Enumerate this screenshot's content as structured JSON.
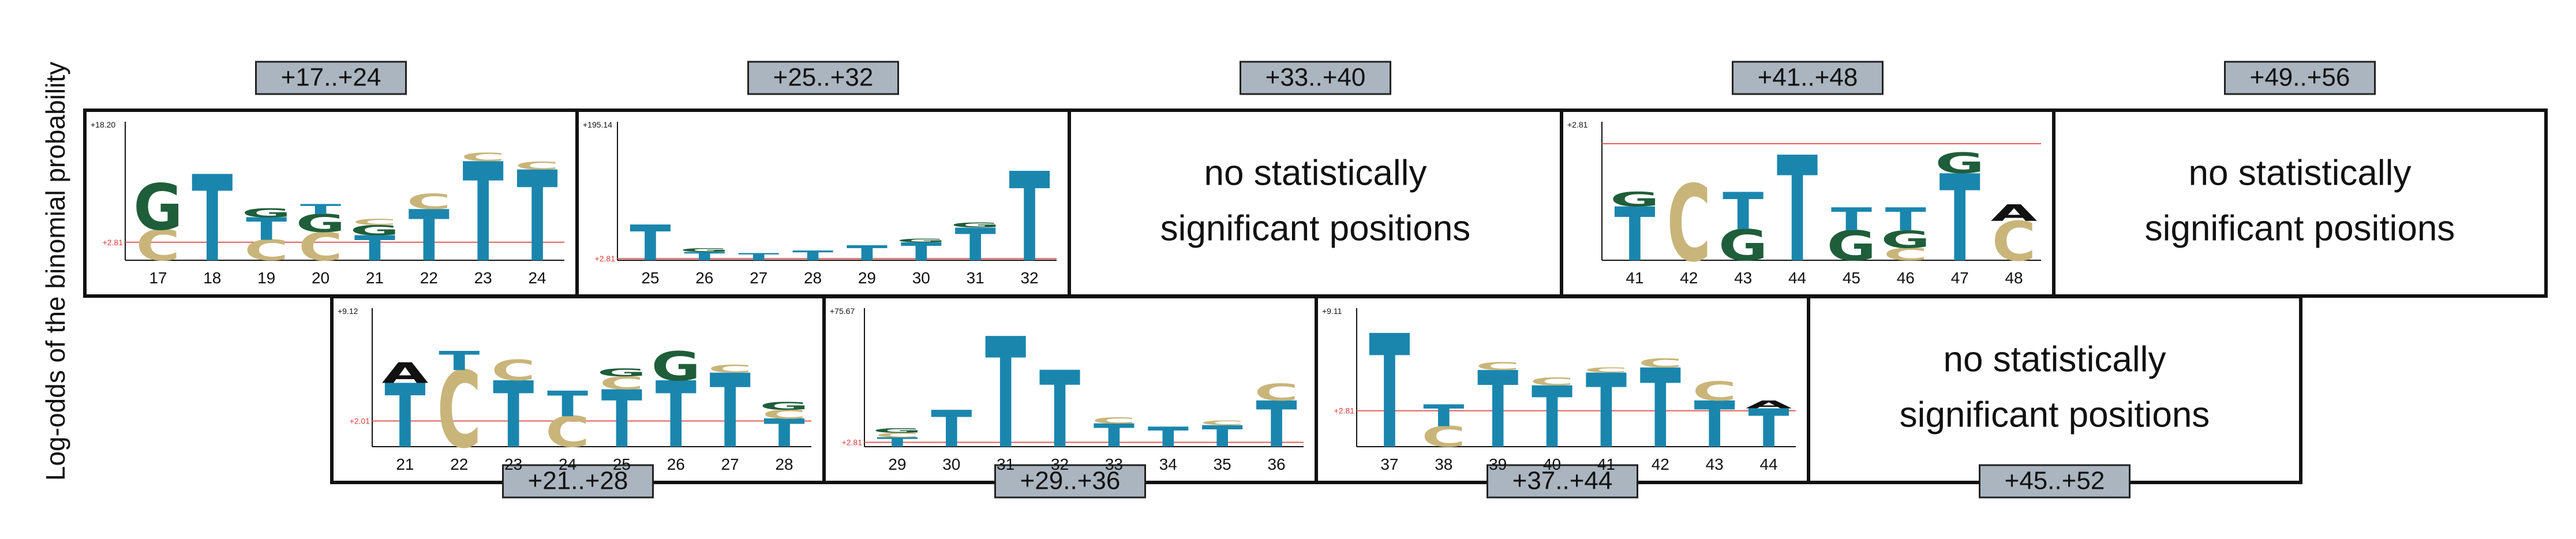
{
  "y_axis_label": "Log-odds of the binomial probability",
  "empty_message_line1": "no statistically",
  "empty_message_line2": "significant positions",
  "colors": {
    "T": "#1a86ad",
    "C": "#c9b57a",
    "G": "#1f5e3a",
    "A": "#111111",
    "threshold": "#e25c5c",
    "range_tag": "#aab5bf"
  },
  "panels": [
    {
      "id": "p17",
      "row": 0,
      "col": 0,
      "range": "+17..+24",
      "empty": false,
      "ymax": 18.2,
      "ymax_label": "+18.20",
      "threshold": 2.81,
      "threshold_label": "+2.81",
      "positions": [
        {
          "n": "17",
          "stack": [
            {
              "l": "C",
              "h": 4.8
            },
            {
              "l": "G",
              "h": 7.2
            }
          ]
        },
        {
          "n": "18",
          "stack": [
            {
              "l": "T",
              "h": 13.5
            }
          ]
        },
        {
          "n": "19",
          "stack": [
            {
              "l": "C",
              "h": 3.2
            },
            {
              "l": "T",
              "h": 3.5
            },
            {
              "l": "G",
              "h": 1.4
            }
          ]
        },
        {
          "n": "20",
          "stack": [
            {
              "l": "C",
              "h": 4.4
            },
            {
              "l": "G",
              "h": 2.8
            },
            {
              "l": "T",
              "h": 1.6
            }
          ]
        },
        {
          "n": "21",
          "stack": [
            {
              "l": "T",
              "h": 3.9
            },
            {
              "l": "G",
              "h": 1.6
            },
            {
              "l": "C",
              "h": 1.0
            }
          ]
        },
        {
          "n": "22",
          "stack": [
            {
              "l": "T",
              "h": 8.0
            },
            {
              "l": "C",
              "h": 2.4
            }
          ]
        },
        {
          "n": "23",
          "stack": [
            {
              "l": "T",
              "h": 15.5
            },
            {
              "l": "C",
              "h": 1.3
            }
          ]
        },
        {
          "n": "24",
          "stack": [
            {
              "l": "T",
              "h": 14.2
            },
            {
              "l": "C",
              "h": 1.2
            }
          ]
        }
      ]
    },
    {
      "id": "p25",
      "row": 0,
      "col": 1,
      "range": "+25..+32",
      "empty": false,
      "ymax": 195.14,
      "ymax_label": "+195.14",
      "threshold": 2.81,
      "threshold_label": "+2.81",
      "positions": [
        {
          "n": "25",
          "stack": [
            {
              "l": "T",
              "h": 60
            }
          ]
        },
        {
          "n": "26",
          "stack": [
            {
              "l": "T",
              "h": 14
            },
            {
              "l": "G",
              "h": 6
            }
          ]
        },
        {
          "n": "27",
          "stack": [
            {
              "l": "T",
              "h": 12
            }
          ]
        },
        {
          "n": "28",
          "stack": [
            {
              "l": "T",
              "h": 16
            }
          ]
        },
        {
          "n": "29",
          "stack": [
            {
              "l": "T",
              "h": 25
            }
          ]
        },
        {
          "n": "30",
          "stack": [
            {
              "l": "T",
              "h": 30
            },
            {
              "l": "G",
              "h": 6
            }
          ]
        },
        {
          "n": "31",
          "stack": [
            {
              "l": "T",
              "h": 55
            },
            {
              "l": "G",
              "h": 8
            }
          ]
        },
        {
          "n": "32",
          "stack": [
            {
              "l": "T",
              "h": 150
            }
          ]
        }
      ]
    },
    {
      "id": "p33",
      "row": 0,
      "col": 2,
      "range": "+33..+40",
      "empty": true
    },
    {
      "id": "p41",
      "row": 0,
      "col": 3,
      "range": "+41..+48",
      "empty": false,
      "ymax": 2.81,
      "ymax_label": "+2.81",
      "threshold": 2.81,
      "threshold_label": "",
      "positions": [
        {
          "n": "41",
          "stack": [
            {
              "l": "T",
              "h": 1.3
            },
            {
              "l": "G",
              "h": 0.35
            }
          ]
        },
        {
          "n": "42",
          "stack": [
            {
              "l": "C",
              "h": 1.85
            }
          ]
        },
        {
          "n": "43",
          "stack": [
            {
              "l": "G",
              "h": 0.75
            },
            {
              "l": "T",
              "h": 0.9
            }
          ]
        },
        {
          "n": "44",
          "stack": [
            {
              "l": "T",
              "h": 2.55
            }
          ]
        },
        {
          "n": "45",
          "stack": [
            {
              "l": "G",
              "h": 0.72
            },
            {
              "l": "T",
              "h": 0.55
            }
          ]
        },
        {
          "n": "46",
          "stack": [
            {
              "l": "C",
              "h": 0.3
            },
            {
              "l": "G",
              "h": 0.42
            },
            {
              "l": "T",
              "h": 0.55
            }
          ]
        },
        {
          "n": "47",
          "stack": [
            {
              "l": "T",
              "h": 2.1
            },
            {
              "l": "G",
              "h": 0.5
            }
          ]
        },
        {
          "n": "48",
          "stack": [
            {
              "l": "C",
              "h": 0.95
            },
            {
              "l": "A",
              "h": 0.4
            }
          ]
        }
      ]
    },
    {
      "id": "p49",
      "row": 0,
      "col": 4,
      "range": "+49..+56",
      "empty": true
    },
    {
      "id": "p21",
      "row": 1,
      "col": 0,
      "range": "+21..+28",
      "empty": false,
      "ymax": 9.12,
      "ymax_label": "+9.12",
      "threshold": 2.01,
      "threshold_label": "+2.01",
      "positions": [
        {
          "n": "21",
          "stack": [
            {
              "l": "T",
              "h": 5.0
            },
            {
              "l": "A",
              "h": 1.6
            }
          ]
        },
        {
          "n": "22",
          "stack": [
            {
              "l": "C",
              "h": 6.0
            },
            {
              "l": "T",
              "h": 1.5
            }
          ]
        },
        {
          "n": "23",
          "stack": [
            {
              "l": "T",
              "h": 5.2
            },
            {
              "l": "C",
              "h": 1.6
            }
          ]
        },
        {
          "n": "24",
          "stack": [
            {
              "l": "C",
              "h": 2.4
            },
            {
              "l": "T",
              "h": 2.0
            }
          ]
        },
        {
          "n": "25",
          "stack": [
            {
              "l": "T",
              "h": 4.5
            },
            {
              "l": "C",
              "h": 1.0
            },
            {
              "l": "G",
              "h": 0.6
            }
          ]
        },
        {
          "n": "26",
          "stack": [
            {
              "l": "T",
              "h": 5.2
            },
            {
              "l": "G",
              "h": 2.3
            }
          ]
        },
        {
          "n": "27",
          "stack": [
            {
              "l": "T",
              "h": 5.8
            },
            {
              "l": "C",
              "h": 0.6
            }
          ]
        },
        {
          "n": "28",
          "stack": [
            {
              "l": "T",
              "h": 2.2
            },
            {
              "l": "C",
              "h": 0.7
            },
            {
              "l": "G",
              "h": 0.6
            }
          ]
        }
      ]
    },
    {
      "id": "p29",
      "row": 1,
      "col": 1,
      "range": "+29..+36",
      "empty": false,
      "ymax": 75.67,
      "ymax_label": "+75.67",
      "threshold": 2.81,
      "threshold_label": "+2.81",
      "positions": [
        {
          "n": "29",
          "stack": [
            {
              "l": "T",
              "h": 6
            },
            {
              "l": "C",
              "h": 3
            },
            {
              "l": "G",
              "h": 3
            }
          ]
        },
        {
          "n": "30",
          "stack": [
            {
              "l": "T",
              "h": 24
            }
          ]
        },
        {
          "n": "31",
          "stack": [
            {
              "l": "T",
              "h": 72
            }
          ]
        },
        {
          "n": "32",
          "stack": [
            {
              "l": "T",
              "h": 50
            }
          ]
        },
        {
          "n": "33",
          "stack": [
            {
              "l": "T",
              "h": 15
            },
            {
              "l": "C",
              "h": 4
            }
          ]
        },
        {
          "n": "34",
          "stack": [
            {
              "l": "T",
              "h": 13
            }
          ]
        },
        {
          "n": "35",
          "stack": [
            {
              "l": "T",
              "h": 14
            },
            {
              "l": "C",
              "h": 3
            }
          ]
        },
        {
          "n": "36",
          "stack": [
            {
              "l": "T",
              "h": 30
            },
            {
              "l": "C",
              "h": 11
            }
          ]
        }
      ]
    },
    {
      "id": "p37",
      "row": 1,
      "col": 2,
      "range": "+37..+44",
      "empty": false,
      "ymax": 9.11,
      "ymax_label": "+9.11",
      "threshold": 2.81,
      "threshold_label": "+2.81",
      "positions": [
        {
          "n": "37",
          "stack": [
            {
              "l": "T",
              "h": 8.9
            }
          ]
        },
        {
          "n": "38",
          "stack": [
            {
              "l": "C",
              "h": 1.6
            },
            {
              "l": "T",
              "h": 1.7
            }
          ]
        },
        {
          "n": "39",
          "stack": [
            {
              "l": "T",
              "h": 6.0
            },
            {
              "l": "C",
              "h": 0.6
            }
          ]
        },
        {
          "n": "40",
          "stack": [
            {
              "l": "T",
              "h": 4.8
            },
            {
              "l": "C",
              "h": 0.6
            }
          ]
        },
        {
          "n": "41",
          "stack": [
            {
              "l": "T",
              "h": 5.8
            },
            {
              "l": "C",
              "h": 0.4
            }
          ]
        },
        {
          "n": "42",
          "stack": [
            {
              "l": "T",
              "h": 6.2
            },
            {
              "l": "C",
              "h": 0.7
            }
          ]
        },
        {
          "n": "43",
          "stack": [
            {
              "l": "T",
              "h": 3.6
            },
            {
              "l": "C",
              "h": 1.5
            }
          ]
        },
        {
          "n": "44",
          "stack": [
            {
              "l": "T",
              "h": 3.0
            },
            {
              "l": "A",
              "h": 0.6
            }
          ]
        }
      ]
    },
    {
      "id": "p45",
      "row": 1,
      "col": 3,
      "range": "+45..+52",
      "empty": true
    }
  ]
}
